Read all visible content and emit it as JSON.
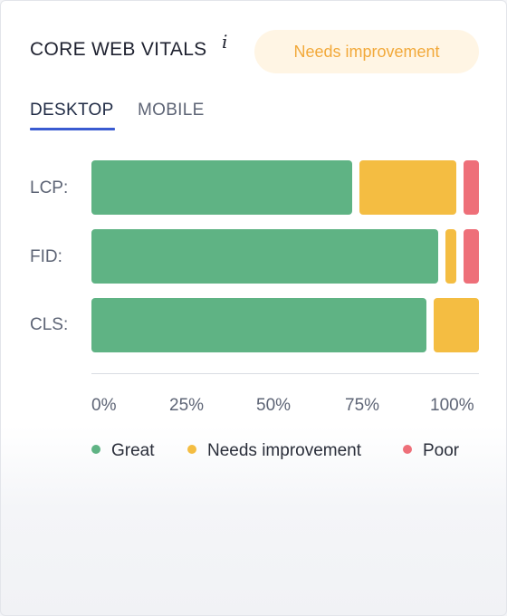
{
  "header": {
    "title": "CORE WEB VITALS",
    "info_glyph": "i",
    "status_badge": "Needs improvement"
  },
  "tabs": [
    {
      "label": "DESKTOP",
      "active": true
    },
    {
      "label": "MOBILE",
      "active": false
    }
  ],
  "colors": {
    "great": "#5fb384",
    "needs_improvement": "#f4bd42",
    "poor": "#ee6f79",
    "accent": "#3a5bd1"
  },
  "chart_data": {
    "type": "bar",
    "orientation": "horizontal",
    "stacked": true,
    "categories": [
      "LCP:",
      "FID:",
      "CLS:"
    ],
    "series": [
      {
        "name": "Great",
        "values": [
          70,
          93,
          88
        ]
      },
      {
        "name": "Needs improvement",
        "values": [
          26,
          3,
          12
        ]
      },
      {
        "name": "Poor",
        "values": [
          4,
          4,
          0
        ]
      }
    ],
    "x_ticks": [
      "0%",
      "25%",
      "50%",
      "75%",
      "100%"
    ],
    "xlim": [
      0,
      100
    ],
    "legend": [
      "Great",
      "Needs improvement",
      "Poor"
    ],
    "legend_position": "bottom",
    "grid": false
  }
}
